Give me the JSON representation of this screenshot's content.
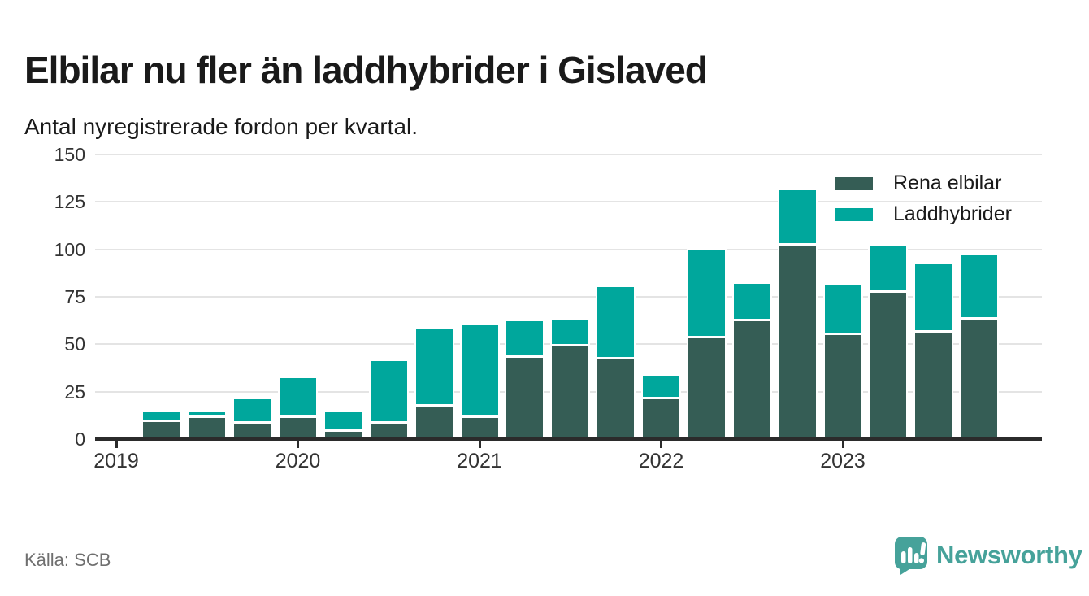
{
  "header": {
    "title": "Elbilar nu fler än laddhybrider i Gislaved",
    "subtitle": "Antal nyregistrerade fordon per kvartal."
  },
  "footer": {
    "source": "Källa: SCB",
    "brand": "Newsworthy"
  },
  "colors": {
    "rena_elbilar": "#355d55",
    "laddhybrider": "#00a79c",
    "brand_teal": "#46a29a",
    "text": "#1a1a1a",
    "axis_labels": "#333333",
    "gridline": "#e4e4e4",
    "axis_line": "#2b2b2b",
    "source_text": "#6f6f6f"
  },
  "chart_data": {
    "type": "bar",
    "stacked": true,
    "title": "Elbilar nu fler än laddhybrider i Gislaved",
    "subtitle": "Antal nyregistrerade fordon per kvartal.",
    "xlabel": "",
    "ylabel": "",
    "categories": [
      "2019 Q2",
      "2019 Q3",
      "2019 Q4",
      "2020 Q1",
      "2020 Q2",
      "2020 Q3",
      "2020 Q4",
      "2021 Q1",
      "2021 Q2",
      "2021 Q3",
      "2021 Q4",
      "2022 Q1",
      "2022 Q2",
      "2022 Q3",
      "2022 Q4",
      "2023 Q1",
      "2023 Q2",
      "2023 Q3",
      "2023 Q4"
    ],
    "series": [
      {
        "name": "Rena elbilar",
        "color": "#355d55",
        "values": [
          9,
          11,
          8,
          11,
          4,
          8,
          17,
          11,
          43,
          49,
          42,
          21,
          53,
          62,
          102,
          55,
          77,
          56,
          63
        ]
      },
      {
        "name": "Laddhybrider",
        "color": "#00a79c",
        "values": [
          5,
          3,
          13,
          21,
          10,
          33,
          41,
          49,
          19,
          14,
          38,
          12,
          47,
          20,
          29,
          26,
          25,
          36,
          34
        ]
      }
    ],
    "x_tick_labels": [
      "2019",
      "2020",
      "2021",
      "2022",
      "2023"
    ],
    "y_ticks": [
      0,
      25,
      50,
      75,
      100,
      125,
      150
    ],
    "ylim": [
      0,
      150
    ],
    "grid": "horizontal",
    "legend_position": "top-right"
  }
}
